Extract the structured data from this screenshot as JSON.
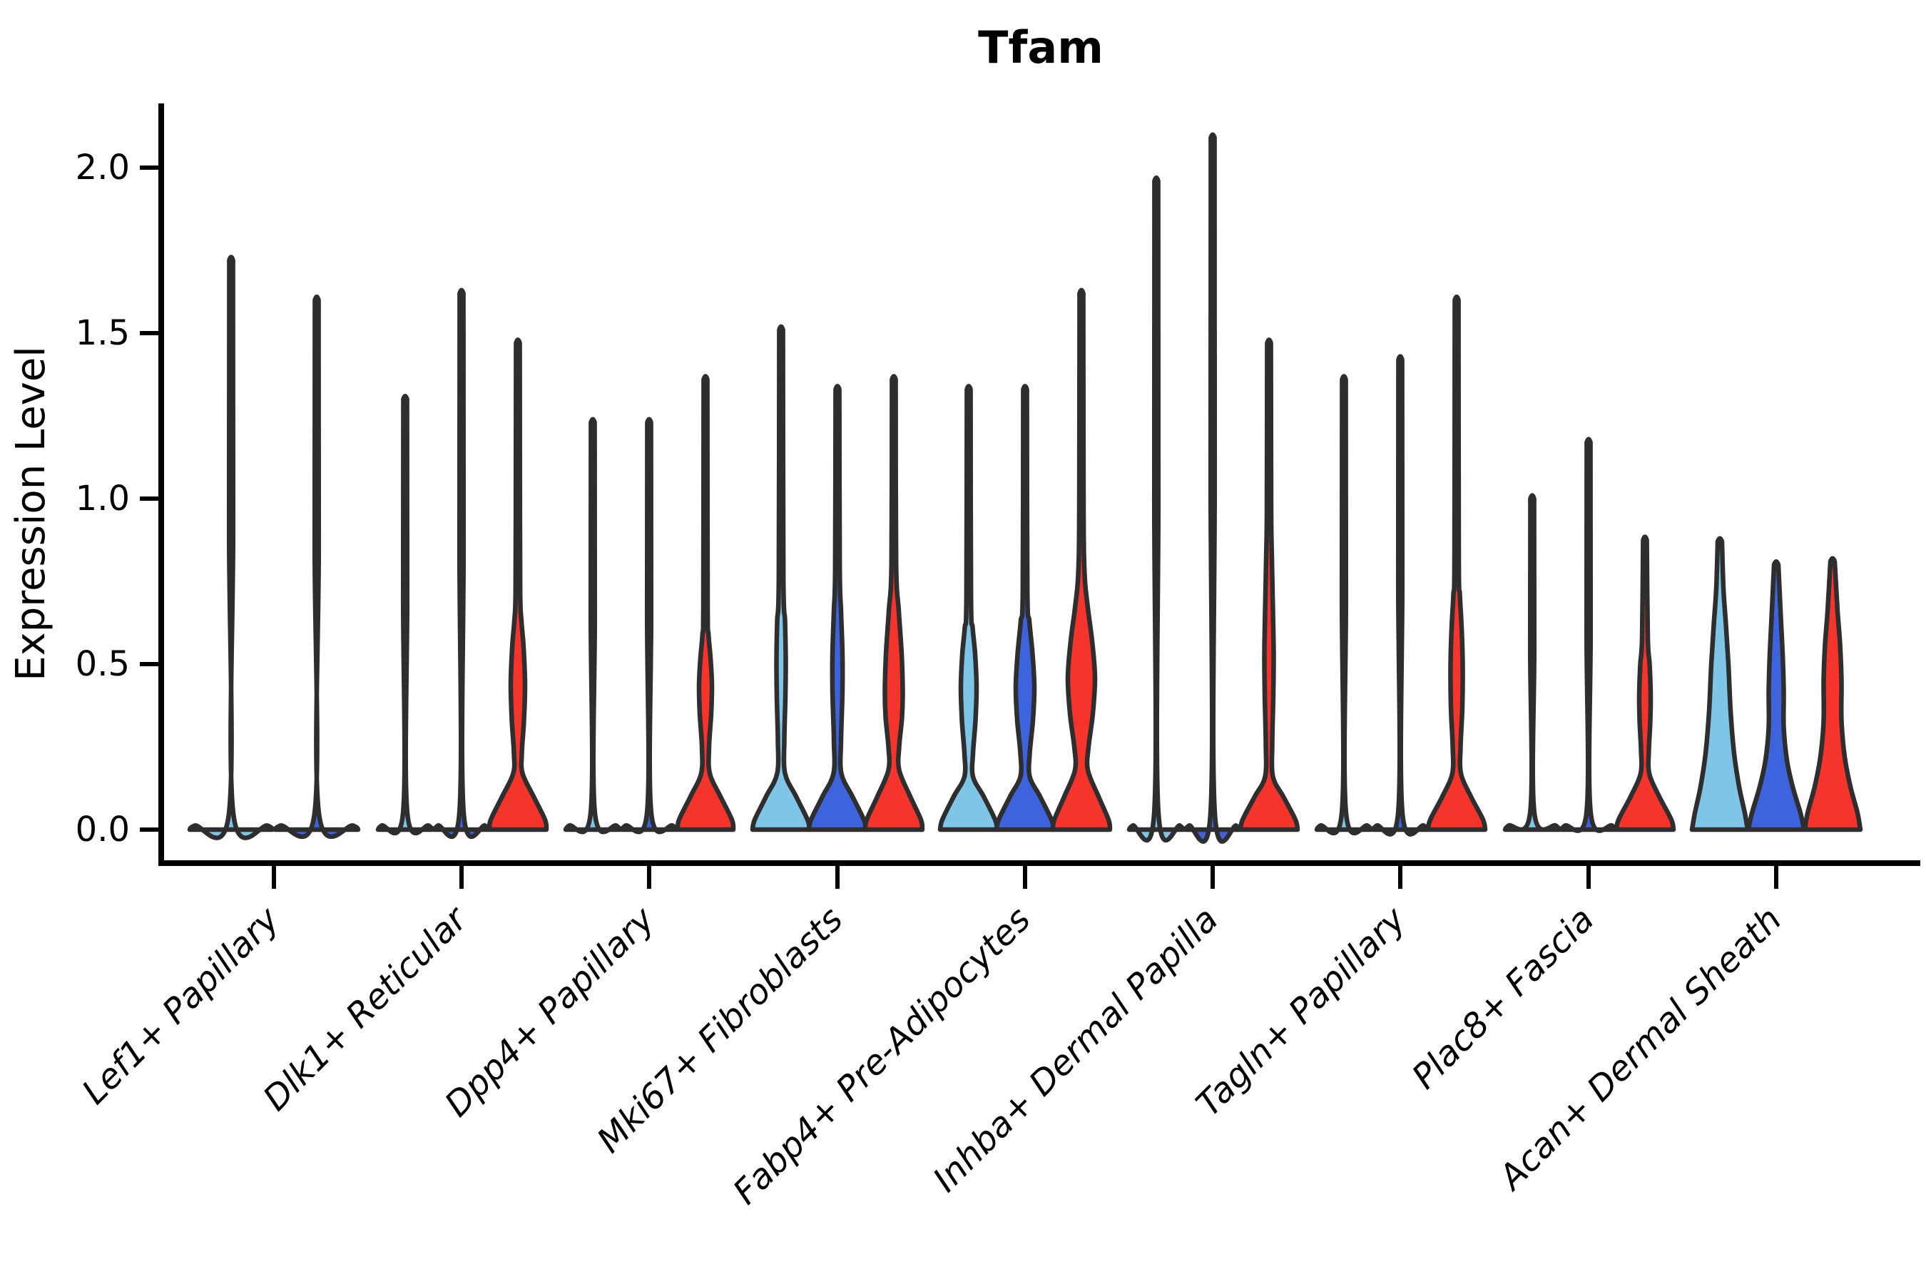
{
  "figure": {
    "title": "Tfam",
    "ylabel": "Expression Level"
  },
  "chart_data": {
    "type": "violin",
    "title": "Tfam",
    "xlabel": "",
    "ylabel": "Expression Level",
    "ylim": [
      -0.1,
      2.19
    ],
    "grid": false,
    "legend_position": "none",
    "ytick_labels": [
      "0.0",
      "0.5",
      "1.0",
      "1.5",
      "2.0"
    ],
    "ytick_values": [
      0.0,
      0.5,
      1.0,
      1.5,
      2.0
    ],
    "categories": [
      "Lef1+ Papillary",
      "Dlk1+ Reticular",
      "Dpp4+ Papillary",
      "Mki67+ Fibroblasts",
      "Fabp4+ Pre-Adipocytes",
      "Inhba+ Dermal Papilla",
      "Tagln+ Papillary",
      "Plac8+ Fascia",
      "Acan+ Dermal Sheath"
    ],
    "split_colors": {
      "light_blue": "#7FC5E8",
      "blue": "#3D64DC",
      "red": "#F5342B"
    },
    "outline_color": "#2E2E2E",
    "axis_color": "#000000",
    "profile_units": [
      "expression_value",
      "halfwidth_px"
    ],
    "violins": [
      {
        "cat": 0,
        "n_slots": 2,
        "slot": 0,
        "color": "light_blue",
        "max": 1.72,
        "shape": "needle",
        "profile": [
          [
            0,
            58
          ],
          [
            0.012,
            51
          ],
          [
            0.05,
            3
          ],
          [
            0.9,
            2.8
          ],
          [
            1.72,
            2.6
          ]
        ]
      },
      {
        "cat": 0,
        "n_slots": 2,
        "slot": 1,
        "color": "blue",
        "max": 1.6,
        "shape": "needle",
        "profile": [
          [
            0,
            58
          ],
          [
            0.012,
            51
          ],
          [
            0.05,
            3
          ],
          [
            0.85,
            2.8
          ],
          [
            1.6,
            2.6
          ]
        ]
      },
      {
        "cat": 1,
        "n_slots": 3,
        "slot": 0,
        "color": "light_blue",
        "max": 1.3,
        "shape": "needle",
        "profile": [
          [
            0,
            38
          ],
          [
            0.012,
            33
          ],
          [
            0.05,
            3
          ],
          [
            0.7,
            2.8
          ],
          [
            1.3,
            2.6
          ]
        ]
      },
      {
        "cat": 1,
        "n_slots": 3,
        "slot": 1,
        "color": "blue",
        "max": 1.62,
        "shape": "needle",
        "profile": [
          [
            0,
            38
          ],
          [
            0.012,
            33
          ],
          [
            0.05,
            3
          ],
          [
            0.85,
            2.8
          ],
          [
            1.62,
            2.6
          ]
        ]
      },
      {
        "cat": 1,
        "n_slots": 3,
        "slot": 2,
        "color": "red",
        "max": 1.47,
        "shape": "violin",
        "profile": [
          [
            0,
            40
          ],
          [
            0.03,
            38
          ],
          [
            0.1,
            22
          ],
          [
            0.17,
            6.5
          ],
          [
            0.23,
            5.5
          ],
          [
            0.33,
            8.5
          ],
          [
            0.44,
            10
          ],
          [
            0.55,
            8
          ],
          [
            0.63,
            5
          ],
          [
            0.72,
            3.2
          ],
          [
            1.1,
            2.8
          ],
          [
            1.47,
            2.6
          ]
        ]
      },
      {
        "cat": 2,
        "n_slots": 3,
        "slot": 0,
        "color": "light_blue",
        "max": 1.23,
        "shape": "needle",
        "profile": [
          [
            0,
            38
          ],
          [
            0.012,
            33
          ],
          [
            0.05,
            3
          ],
          [
            0.65,
            2.8
          ],
          [
            1.23,
            2.6
          ]
        ]
      },
      {
        "cat": 2,
        "n_slots": 3,
        "slot": 1,
        "color": "blue",
        "max": 1.23,
        "shape": "needle",
        "profile": [
          [
            0,
            38
          ],
          [
            0.012,
            33
          ],
          [
            0.05,
            3
          ],
          [
            0.65,
            2.8
          ],
          [
            1.23,
            2.6
          ]
        ]
      },
      {
        "cat": 2,
        "n_slots": 3,
        "slot": 2,
        "color": "red",
        "max": 1.36,
        "shape": "violin",
        "profile": [
          [
            0,
            39
          ],
          [
            0.03,
            37
          ],
          [
            0.1,
            21
          ],
          [
            0.17,
            6
          ],
          [
            0.25,
            5
          ],
          [
            0.35,
            8
          ],
          [
            0.44,
            9
          ],
          [
            0.52,
            7
          ],
          [
            0.59,
            4.2
          ],
          [
            0.68,
            3
          ],
          [
            1.36,
            2.6
          ]
        ]
      },
      {
        "cat": 3,
        "n_slots": 3,
        "slot": 0,
        "color": "light_blue",
        "max": 1.51,
        "shape": "violin",
        "profile": [
          [
            0,
            40
          ],
          [
            0.03,
            37
          ],
          [
            0.1,
            21
          ],
          [
            0.17,
            5.5
          ],
          [
            0.27,
            4.5
          ],
          [
            0.4,
            6
          ],
          [
            0.51,
            6.5
          ],
          [
            0.63,
            5.5
          ],
          [
            0.76,
            3.2
          ],
          [
            1.51,
            2.6
          ]
        ]
      },
      {
        "cat": 3,
        "n_slots": 3,
        "slot": 1,
        "color": "blue",
        "max": 1.33,
        "shape": "violin",
        "profile": [
          [
            0,
            40
          ],
          [
            0.03,
            37
          ],
          [
            0.1,
            21
          ],
          [
            0.17,
            5.5
          ],
          [
            0.27,
            5
          ],
          [
            0.42,
            7
          ],
          [
            0.53,
            7
          ],
          [
            0.66,
            5
          ],
          [
            0.79,
            3.2
          ],
          [
            1.33,
            2.6
          ]
        ]
      },
      {
        "cat": 3,
        "n_slots": 3,
        "slot": 2,
        "color": "red",
        "max": 1.36,
        "shape": "violin",
        "profile": [
          [
            0,
            40
          ],
          [
            0.03,
            38
          ],
          [
            0.1,
            23
          ],
          [
            0.18,
            7.5
          ],
          [
            0.25,
            7.5
          ],
          [
            0.34,
            11.5
          ],
          [
            0.42,
            12.5
          ],
          [
            0.53,
            11
          ],
          [
            0.66,
            7
          ],
          [
            0.81,
            3.2
          ],
          [
            1.36,
            2.6
          ]
        ]
      },
      {
        "cat": 4,
        "n_slots": 3,
        "slot": 0,
        "color": "light_blue",
        "max": 1.33,
        "shape": "violin",
        "profile": [
          [
            0,
            40
          ],
          [
            0.03,
            37
          ],
          [
            0.1,
            21
          ],
          [
            0.16,
            6
          ],
          [
            0.23,
            6
          ],
          [
            0.33,
            9.5
          ],
          [
            0.43,
            11
          ],
          [
            0.53,
            9
          ],
          [
            0.61,
            5.5
          ],
          [
            0.7,
            3.2
          ],
          [
            1.33,
            2.6
          ]
        ]
      },
      {
        "cat": 4,
        "n_slots": 3,
        "slot": 1,
        "color": "blue",
        "max": 1.33,
        "shape": "violin",
        "profile": [
          [
            0,
            40
          ],
          [
            0.03,
            37
          ],
          [
            0.1,
            21
          ],
          [
            0.16,
            6.5
          ],
          [
            0.23,
            6.5
          ],
          [
            0.33,
            11
          ],
          [
            0.43,
            13
          ],
          [
            0.53,
            10.5
          ],
          [
            0.63,
            6
          ],
          [
            0.72,
            3.2
          ],
          [
            1.33,
            2.6
          ]
        ]
      },
      {
        "cat": 4,
        "n_slots": 3,
        "slot": 2,
        "color": "red",
        "max": 1.62,
        "shape": "violin",
        "profile": [
          [
            0,
            40
          ],
          [
            0.03,
            38
          ],
          [
            0.1,
            24
          ],
          [
            0.18,
            9
          ],
          [
            0.25,
            10
          ],
          [
            0.35,
            16
          ],
          [
            0.46,
            19
          ],
          [
            0.57,
            15
          ],
          [
            0.67,
            9
          ],
          [
            0.77,
            4.5
          ],
          [
            0.97,
            3
          ],
          [
            1.62,
            2.6
          ]
        ]
      },
      {
        "cat": 5,
        "n_slots": 3,
        "slot": 0,
        "color": "light_blue",
        "max": 1.96,
        "shape": "needle",
        "profile": [
          [
            0,
            38
          ],
          [
            0.012,
            33
          ],
          [
            0.05,
            3
          ],
          [
            1.0,
            2.8
          ],
          [
            1.96,
            2.6
          ]
        ]
      },
      {
        "cat": 5,
        "n_slots": 3,
        "slot": 1,
        "color": "blue",
        "max": 2.09,
        "shape": "needle",
        "profile": [
          [
            0,
            38
          ],
          [
            0.012,
            33
          ],
          [
            0.05,
            3
          ],
          [
            1.05,
            2.8
          ],
          [
            2.09,
            2.6
          ]
        ]
      },
      {
        "cat": 5,
        "n_slots": 3,
        "slot": 2,
        "color": "red",
        "max": 1.47,
        "shape": "violin",
        "profile": [
          [
            0,
            40
          ],
          [
            0.03,
            37
          ],
          [
            0.1,
            20
          ],
          [
            0.16,
            5.5
          ],
          [
            0.26,
            4.5
          ],
          [
            0.41,
            6
          ],
          [
            0.53,
            6.5
          ],
          [
            0.66,
            5.5
          ],
          [
            0.82,
            4
          ],
          [
            0.97,
            3
          ],
          [
            1.47,
            2.6
          ]
        ]
      },
      {
        "cat": 6,
        "n_slots": 3,
        "slot": 0,
        "color": "light_blue",
        "max": 1.36,
        "shape": "needle",
        "profile": [
          [
            0,
            38
          ],
          [
            0.012,
            33
          ],
          [
            0.05,
            3
          ],
          [
            0.7,
            2.8
          ],
          [
            1.36,
            2.6
          ]
        ]
      },
      {
        "cat": 6,
        "n_slots": 3,
        "slot": 1,
        "color": "blue",
        "max": 1.42,
        "shape": "needle",
        "profile": [
          [
            0,
            38
          ],
          [
            0.012,
            33
          ],
          [
            0.05,
            3
          ],
          [
            0.75,
            2.8
          ],
          [
            1.42,
            2.6
          ]
        ]
      },
      {
        "cat": 6,
        "n_slots": 3,
        "slot": 2,
        "color": "red",
        "max": 1.6,
        "shape": "violin",
        "profile": [
          [
            0,
            40
          ],
          [
            0.03,
            37
          ],
          [
            0.1,
            20
          ],
          [
            0.17,
            6
          ],
          [
            0.25,
            5.5
          ],
          [
            0.37,
            8
          ],
          [
            0.5,
            8.5
          ],
          [
            0.61,
            7
          ],
          [
            0.71,
            4.5
          ],
          [
            0.82,
            3
          ],
          [
            1.6,
            2.6
          ]
        ]
      },
      {
        "cat": 7,
        "n_slots": 3,
        "slot": 0,
        "color": "light_blue",
        "max": 1.0,
        "shape": "needle",
        "profile": [
          [
            0,
            38
          ],
          [
            0.012,
            33
          ],
          [
            0.05,
            3
          ],
          [
            0.55,
            2.8
          ],
          [
            1.0,
            2.6
          ]
        ]
      },
      {
        "cat": 7,
        "n_slots": 3,
        "slot": 1,
        "color": "blue",
        "max": 1.17,
        "shape": "needle",
        "profile": [
          [
            0,
            38
          ],
          [
            0.012,
            33
          ],
          [
            0.05,
            3
          ],
          [
            0.6,
            2.8
          ],
          [
            1.17,
            2.6
          ]
        ]
      },
      {
        "cat": 7,
        "n_slots": 3,
        "slot": 2,
        "color": "red",
        "max": 0.875,
        "shape": "violin",
        "profile": [
          [
            0,
            40
          ],
          [
            0.03,
            37
          ],
          [
            0.1,
            20
          ],
          [
            0.17,
            6
          ],
          [
            0.24,
            5.5
          ],
          [
            0.33,
            7.5
          ],
          [
            0.41,
            8
          ],
          [
            0.5,
            6.5
          ],
          [
            0.58,
            4
          ],
          [
            0.875,
            2.6
          ]
        ]
      },
      {
        "cat": 8,
        "n_slots": 3,
        "slot": 0,
        "color": "light_blue",
        "max": 0.87,
        "shape": "broad",
        "profile": [
          [
            0,
            39
          ],
          [
            0.05,
            35
          ],
          [
            0.13,
            27
          ],
          [
            0.23,
            20
          ],
          [
            0.36,
            15
          ],
          [
            0.5,
            12
          ],
          [
            0.62,
            8.5
          ],
          [
            0.73,
            5
          ],
          [
            0.87,
            3
          ]
        ]
      },
      {
        "cat": 8,
        "n_slots": 3,
        "slot": 1,
        "color": "blue",
        "max": 0.8,
        "shape": "broad",
        "profile": [
          [
            0,
            39
          ],
          [
            0.05,
            34
          ],
          [
            0.13,
            23
          ],
          [
            0.21,
            15
          ],
          [
            0.31,
            10.5
          ],
          [
            0.42,
            10.5
          ],
          [
            0.53,
            9
          ],
          [
            0.64,
            6.5
          ],
          [
            0.8,
            3
          ]
        ]
      },
      {
        "cat": 8,
        "n_slots": 3,
        "slot": 2,
        "color": "red",
        "max": 0.81,
        "shape": "broad",
        "profile": [
          [
            0,
            39
          ],
          [
            0.05,
            35
          ],
          [
            0.13,
            25
          ],
          [
            0.22,
            17
          ],
          [
            0.33,
            12.5
          ],
          [
            0.45,
            12.5
          ],
          [
            0.56,
            10.5
          ],
          [
            0.66,
            7
          ],
          [
            0.81,
            3
          ]
        ]
      }
    ]
  }
}
